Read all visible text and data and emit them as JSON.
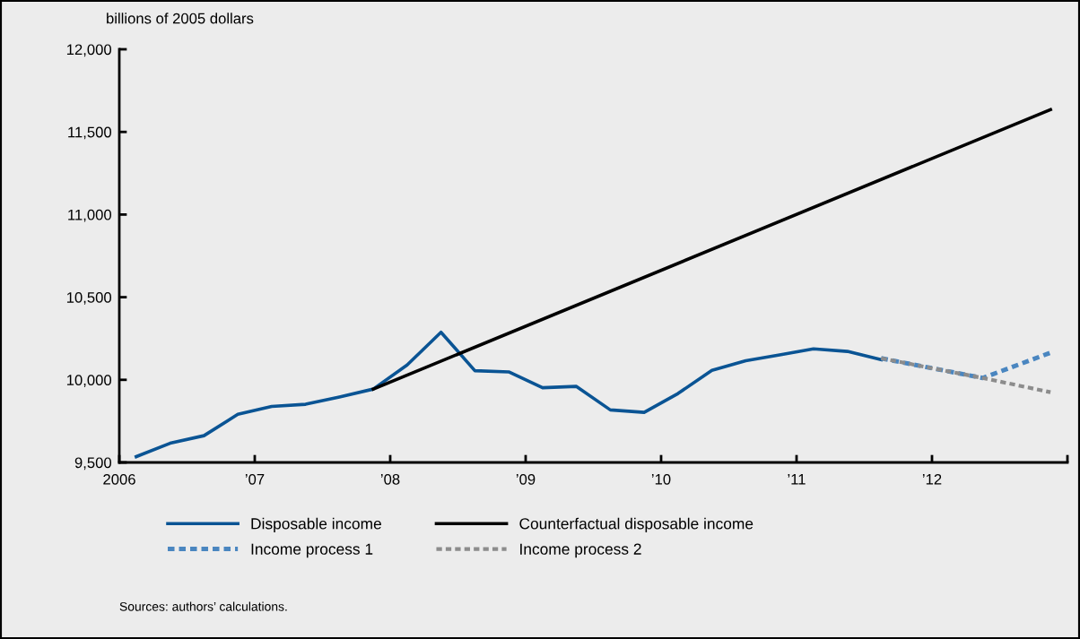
{
  "chart_data": {
    "type": "line",
    "ylabel": "billions of 2005 dollars",
    "xlim": [
      2006,
      2013
    ],
    "xticks": [
      {
        "value": 2006,
        "label": "2006"
      },
      {
        "value": 2007,
        "label": "’07"
      },
      {
        "value": 2008,
        "label": "’08"
      },
      {
        "value": 2009,
        "label": "’09"
      },
      {
        "value": 2010,
        "label": "’10"
      },
      {
        "value": 2011,
        "label": "’11"
      },
      {
        "value": 2012,
        "label": "’12"
      },
      {
        "value": 2013,
        "label": null
      }
    ],
    "ylim": [
      9500,
      12000
    ],
    "yticks": [
      {
        "value": 9500,
        "label": "9,500"
      },
      {
        "value": 10000,
        "label": "10,000"
      },
      {
        "value": 10500,
        "label": "10,500"
      },
      {
        "value": 11000,
        "label": "11,000"
      },
      {
        "value": 11500,
        "label": "11,500"
      },
      {
        "value": 12000,
        "label": "12,000"
      }
    ],
    "grid": false,
    "legend": "bottom",
    "series": [
      {
        "name": "Disposable income",
        "color": "#0a5494",
        "line_style": "solid",
        "x": [
          2006.125,
          2006.375,
          2006.625,
          2006.875,
          2007.125,
          2007.375,
          2007.625,
          2007.875,
          2008.125,
          2008.375,
          2008.625,
          2008.875,
          2009.125,
          2009.375,
          2009.625,
          2009.875,
          2010.125,
          2010.375,
          2010.625,
          2010.875,
          2011.125,
          2011.375,
          2011.625
        ],
        "values": [
          9535,
          9616,
          9662,
          9791,
          9839,
          9852,
          9896,
          9944,
          10090,
          10288,
          10055,
          10048,
          9952,
          9960,
          9818,
          9803,
          9917,
          10057,
          10116,
          10151,
          10187,
          10172,
          10122
        ]
      },
      {
        "name": "Counterfactual disposable income",
        "color": "#000000",
        "line_style": "solid",
        "x": [
          2007.875,
          2012.875
        ],
        "values": [
          9944,
          11635
        ]
      },
      {
        "name": "Income process 1",
        "color": "#4a86c0",
        "line_style": "dotted",
        "x": [
          2011.625,
          2012.375,
          2012.875
        ],
        "values": [
          10130,
          10011,
          10164
        ]
      },
      {
        "name": "Income process 2",
        "color": "#8c8c8c",
        "line_style": "dotted",
        "x": [
          2011.625,
          2012.375,
          2012.875
        ],
        "values": [
          10130,
          10011,
          9925
        ]
      }
    ],
    "annotations": [
      "Sources: authors’ calculations."
    ]
  }
}
